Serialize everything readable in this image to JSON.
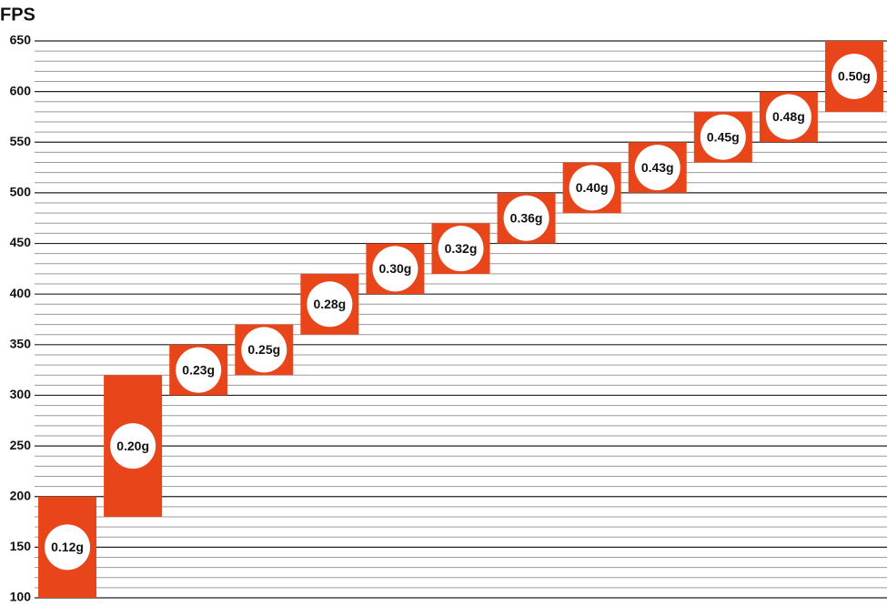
{
  "chart_data": {
    "type": "range-bar",
    "y_label": "FPS",
    "categories": [
      "0.12g",
      "0.20g",
      "0.23g",
      "0.25g",
      "0.28g",
      "0.30g",
      "0.32g",
      "0.36g",
      "0.40g",
      "0.43g",
      "0.45g",
      "0.48g",
      "0.50g"
    ],
    "low": [
      100,
      180,
      300,
      320,
      360,
      400,
      420,
      450,
      480,
      500,
      530,
      550,
      580
    ],
    "high": [
      200,
      320,
      350,
      370,
      420,
      450,
      470,
      500,
      530,
      550,
      580,
      600,
      650
    ],
    "color": "#e8461a",
    "ylim": [
      100,
      650
    ],
    "yticks": [
      100,
      150,
      200,
      250,
      300,
      350,
      400,
      450,
      500,
      550,
      600,
      650
    ],
    "grid": true
  }
}
